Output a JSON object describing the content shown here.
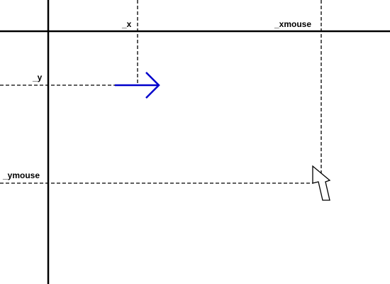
{
  "labels": {
    "x": "_x",
    "y": "_y",
    "xmouse": "_xmouse",
    "ymouse": "_ymouse"
  },
  "icons": {
    "arrow": "right-arrow-icon",
    "cursor": "mouse-pointer-icon"
  },
  "colors": {
    "axis": "#000000",
    "guide": "#000000",
    "arrow": "#0000cc",
    "cursor_fill": "#ffffff",
    "cursor_stroke": "#000000"
  }
}
